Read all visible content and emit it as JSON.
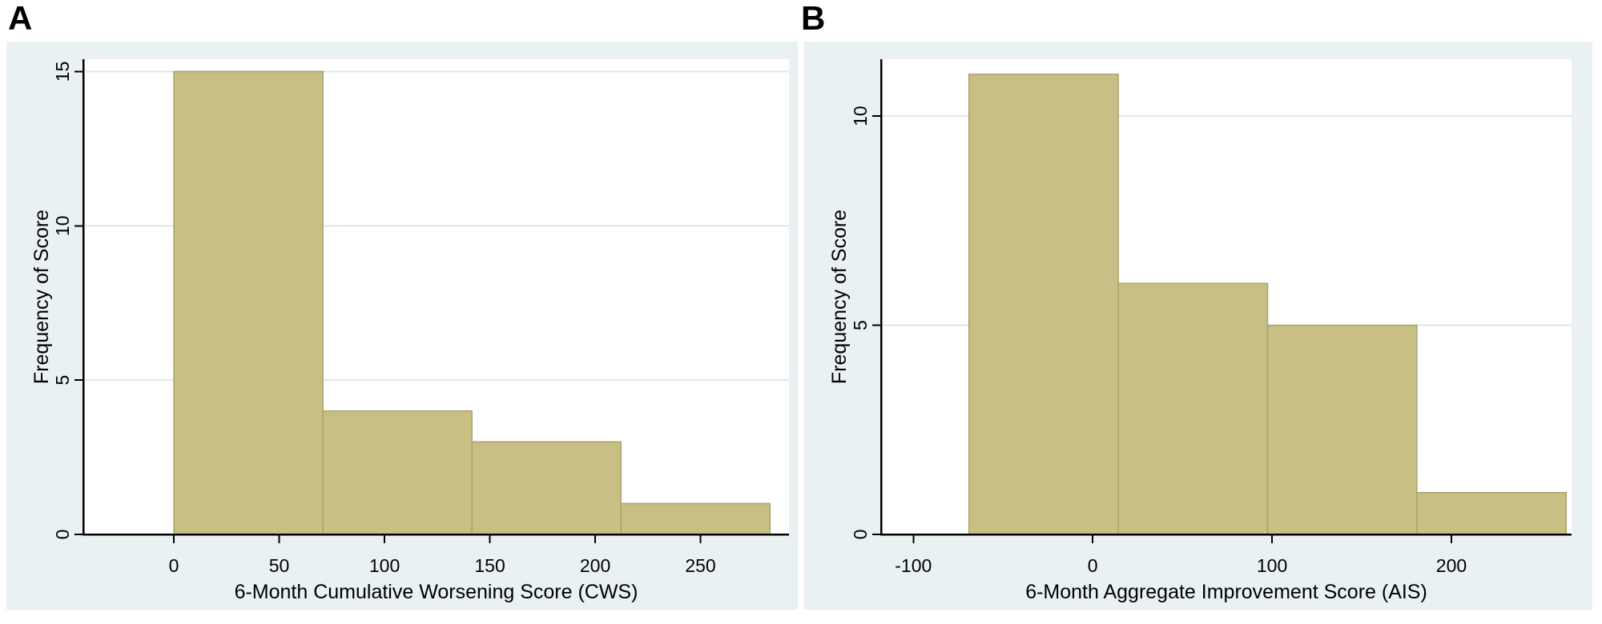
{
  "figure": {
    "panels": [
      {
        "letter": "A"
      },
      {
        "letter": "B"
      }
    ]
  },
  "chart_data": [
    {
      "type": "bar",
      "subtype": "histogram",
      "panel": "A",
      "title": "",
      "xlabel": "6-Month Cumulative Worsening Score (CWS)",
      "ylabel": "Frequency of Score",
      "bin_edges": [
        0,
        70.75,
        141.5,
        212.25,
        283
      ],
      "frequencies": [
        15,
        4,
        3,
        1
      ],
      "xticks": [
        0,
        50,
        100,
        150,
        200,
        250
      ],
      "yticks": [
        0,
        5,
        10,
        15
      ],
      "xlim": [
        -43,
        292
      ],
      "ylim": [
        0,
        15.4
      ],
      "grid": "horizontal",
      "legend": "none"
    },
    {
      "type": "bar",
      "subtype": "histogram",
      "panel": "B",
      "title": "",
      "xlabel": "6-Month Aggregate Improvement Score (AIS)",
      "ylabel": "Frequency of Score",
      "bin_edges": [
        -69,
        14.25,
        97.5,
        180.75,
        264
      ],
      "frequencies": [
        11,
        6,
        5,
        1
      ],
      "xticks": [
        -100,
        0,
        100,
        200
      ],
      "yticks": [
        0,
        5,
        10
      ],
      "xlim": [
        -118,
        267
      ],
      "ylim": [
        0,
        11.36
      ],
      "grid": "horizontal",
      "legend": "none"
    }
  ],
  "colors": {
    "bar_fill": "#c8bf84",
    "bar_border": "#aaa26c",
    "panel_background": "#eaf1f2",
    "plot_background": "#ffffff",
    "gridline": "#dce8ec",
    "axis": "#000000",
    "text": "#000000",
    "page_background": "#ffffff"
  }
}
